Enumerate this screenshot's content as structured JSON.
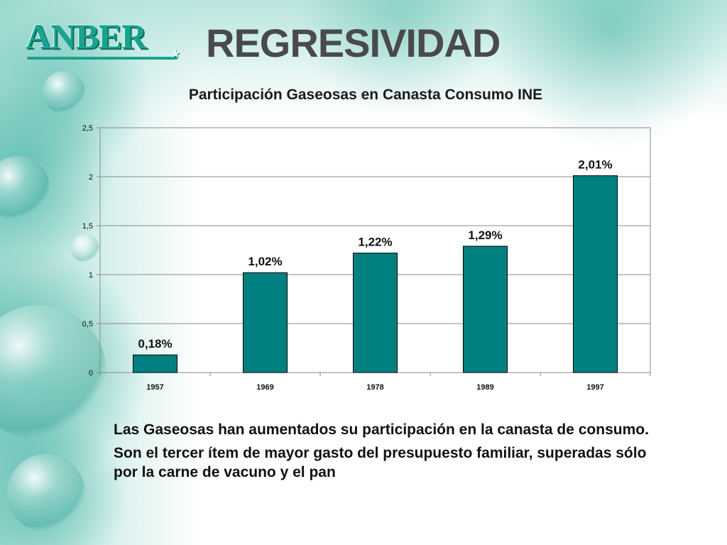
{
  "logo": {
    "text": "ANBER"
  },
  "slide": {
    "title": "REGRESIVIDAD"
  },
  "chart_data": {
    "type": "bar",
    "title": "Participación Gaseosas en Canasta Consumo INE",
    "categories": [
      "1957",
      "1969",
      "1978",
      "1989",
      "1997"
    ],
    "values": [
      0.18,
      1.02,
      1.22,
      1.29,
      2.01
    ],
    "data_labels": [
      "0,18%",
      "1,02%",
      "1,22%",
      "1,29%",
      "2,01%"
    ],
    "ylim": [
      0,
      2.5
    ],
    "yticks": [
      0,
      0.5,
      1,
      1.5,
      2,
      2.5
    ],
    "ytick_labels": [
      "0",
      "0,5",
      "1",
      "1,5",
      "2",
      "2,5"
    ],
    "xlabel": "",
    "ylabel": "",
    "grid": true,
    "legend": "none",
    "colors": {
      "bar": "#008080",
      "bar_border": "#000000",
      "grid": "#8a8a8a"
    }
  },
  "bullets": [
    "Las Gaseosas han aumentados su participación en la canasta de consumo.",
    "Son el tercer ítem de mayor gasto del presupuesto familiar, superadas sólo por la carne de vacuno y el pan"
  ]
}
